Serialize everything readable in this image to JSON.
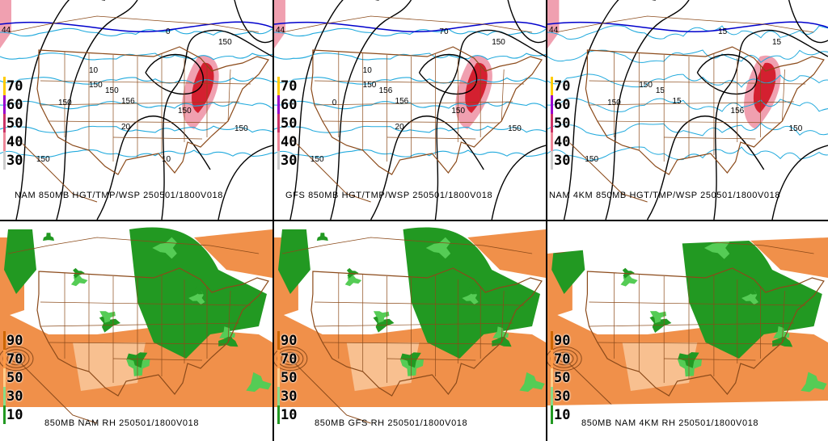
{
  "panels": [
    {
      "id": "nam-hgt",
      "caption": "NAM 850MB HGT/TMP/WSP 250501/1800V018",
      "type": "hgt",
      "legend": [
        "70",
        "60",
        "50",
        "40",
        "30"
      ],
      "contour_labels": [
        "44",
        "0",
        "150",
        "150",
        "150",
        "150",
        "150",
        "150",
        "156",
        "150",
        "20",
        "10",
        "10"
      ]
    },
    {
      "id": "gfs-hgt",
      "caption": "GFS 850MB HGT/TMP/WSP 250501/1800V018",
      "type": "hgt",
      "legend": [
        "70",
        "60",
        "50",
        "40",
        "30"
      ],
      "contour_labels": [
        "44",
        "70",
        "0",
        "150",
        "150",
        "150",
        "150",
        "156",
        "156",
        "150",
        "20",
        "10"
      ]
    },
    {
      "id": "nam4km-hgt",
      "caption": "NAM 4KM 850MB HGT/TMP/WSP 250501/1800V018",
      "type": "hgt",
      "legend": [
        "70",
        "60",
        "50",
        "40",
        "30"
      ],
      "contour_labels": [
        "44",
        "15",
        "150",
        "150",
        "150",
        "150",
        "156",
        "15",
        "15",
        "15"
      ]
    },
    {
      "id": "nam-rh",
      "caption": "850MB NAM RH 250501/1800V018",
      "type": "rh",
      "legend": [
        "90",
        "70",
        "50",
        "30",
        "10"
      ]
    },
    {
      "id": "gfs-rh",
      "caption": "850MB GFS RH 250501/1800V018",
      "type": "rh",
      "legend": [
        "90",
        "70",
        "50",
        "30",
        "10"
      ]
    },
    {
      "id": "nam4km-rh",
      "caption": "850MB NAM 4KM RH 250501/1800V018",
      "type": "rh",
      "legend": [
        "90",
        "70",
        "50",
        "30",
        "10"
      ]
    }
  ],
  "colors": {
    "height_contour": "#000000",
    "temp_contour": "#22aadd",
    "freezing_line": "#0000cc",
    "borders": "#8b4a1a",
    "wind_shade": "#d42030",
    "wind_shade_light": "#f0a0b0",
    "rh_moist": "#229922",
    "rh_moist_light": "#55cc55",
    "rh_dry": "#f0904a",
    "rh_dry_light": "#f8c090"
  }
}
